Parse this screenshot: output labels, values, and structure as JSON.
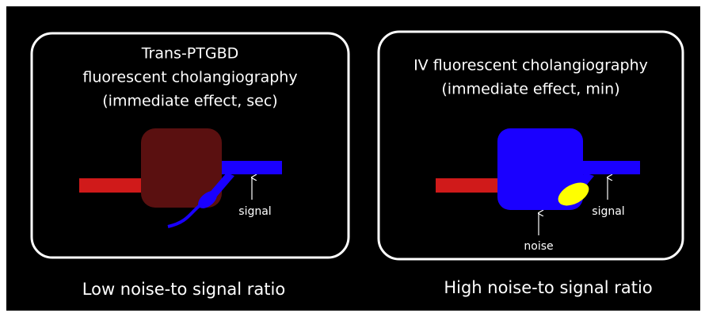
{
  "panels": [
    {
      "title_lines": [
        "Trans-PTGBD",
        "fluorescent cholangiography",
        "(immediate effect, sec)"
      ],
      "labels": [
        "signal"
      ],
      "caption": "Low noise-to signal ratio"
    },
    {
      "title_lines": [
        "IV fluorescent cholangiography",
        "(immediate effect, min)"
      ],
      "labels": [
        "signal",
        "noise"
      ],
      "caption": "High noise-to signal ratio"
    }
  ]
}
